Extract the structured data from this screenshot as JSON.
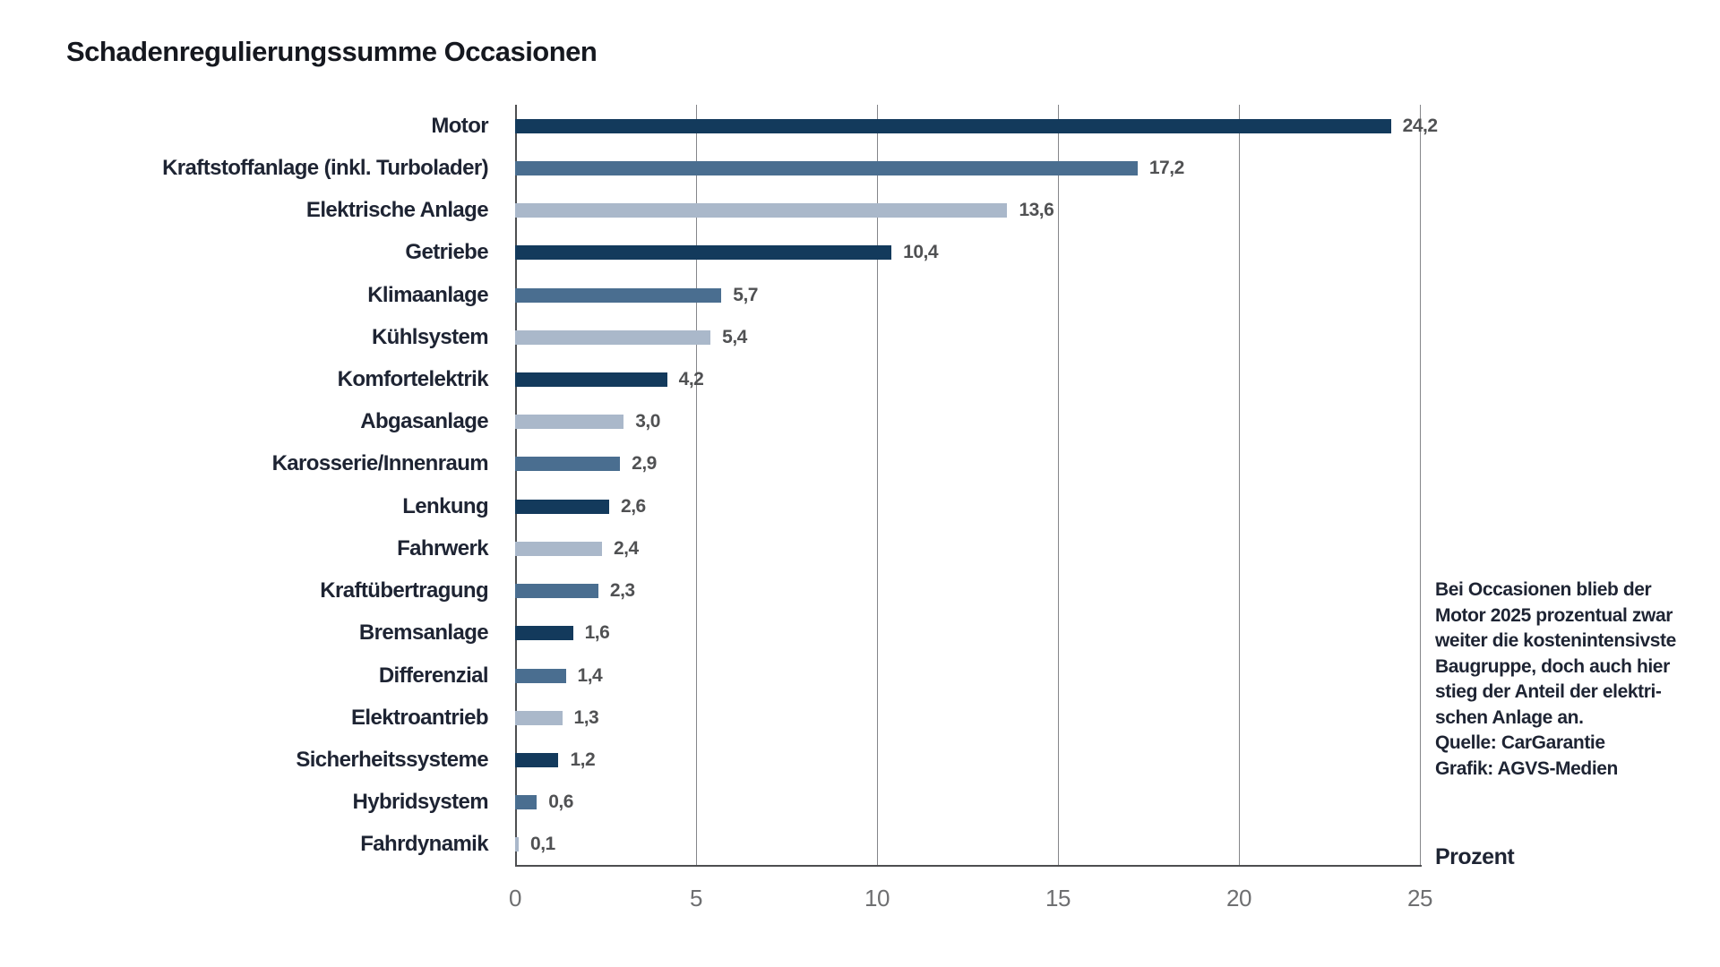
{
  "title": "Schadenregulierungssumme Occasionen",
  "chart_data": {
    "type": "bar",
    "orientation": "horizontal",
    "title": "Schadenregulierungssumme Occasionen",
    "categories": [
      "Motor",
      "Kraftstoffanlage (inkl. Turbolader)",
      "Elektrische Anlage",
      "Getriebe",
      "Klimaanlage",
      "Kühlsystem",
      "Komfortelektrik",
      "Abgasanlage",
      "Karosserie/Innenraum",
      "Lenkung",
      "Fahrwerk",
      "Kraftübertragung",
      "Bremsanlage",
      "Differenzial",
      "Elektroantrieb",
      "Sicherheitssysteme",
      "Hybridsystem",
      "Fahrdynamik"
    ],
    "values": [
      24.2,
      17.2,
      13.6,
      10.4,
      5.7,
      5.4,
      4.2,
      3.0,
      2.9,
      2.6,
      2.4,
      2.3,
      1.6,
      1.4,
      1.3,
      1.2,
      0.6,
      0.1
    ],
    "value_labels": [
      "24,2",
      "17,2",
      "13,6",
      "10,4",
      "5,7",
      "5,4",
      "4,2",
      "3,0",
      "2,9",
      "2,6",
      "2,4",
      "2,3",
      "1,6",
      "1,4",
      "1,3",
      "1,2",
      "0,6",
      "0,1"
    ],
    "bar_color_keys": [
      "dark",
      "medium",
      "light",
      "dark",
      "medium",
      "light",
      "dark",
      "light",
      "medium",
      "dark",
      "light",
      "medium",
      "dark",
      "medium",
      "light",
      "dark",
      "medium",
      "light"
    ],
    "colors": {
      "dark": "#133a5c",
      "medium": "#4a6e90",
      "light": "#aab8ca"
    },
    "xlabel": "Prozent",
    "ylabel": "",
    "xlim": [
      0,
      25
    ],
    "x_ticks": [
      0,
      5,
      10,
      15,
      20,
      25
    ],
    "x_tick_labels": [
      "0",
      "5",
      "10",
      "15",
      "20",
      "25"
    ],
    "grid": "vertical",
    "legend": "none"
  },
  "annotation": {
    "text": "Bei Occasionen blieb der\nMotor 2025 prozentual zwar\nweiter die kostenintensivste\nBaugruppe, doch auch hier\nstieg der Anteil der elektri-\nschen Anlage an.\nQuelle: CarGarantie\nGrafik: AGVS-Medien"
  }
}
